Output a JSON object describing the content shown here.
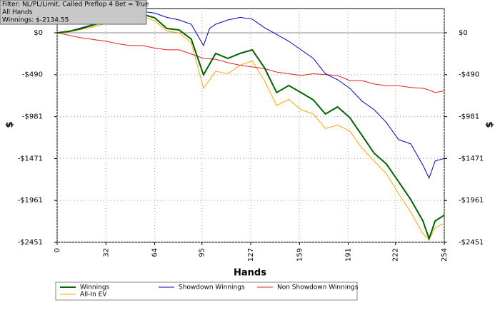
{
  "chart_data": {
    "type": "line",
    "info": [
      "Filter: NL/PL/Limit, Called Preflop 4 Bet = True",
      "All Hands",
      "Winnings: $-2134.55"
    ],
    "x_label": "Hands",
    "y_label": "$",
    "x": [
      0,
      8,
      16,
      24,
      32,
      40,
      48,
      56,
      64,
      72,
      80,
      88,
      96,
      100,
      104,
      112,
      120,
      128,
      136,
      144,
      152,
      160,
      168,
      176,
      184,
      192,
      200,
      208,
      216,
      224,
      232,
      240,
      244,
      248,
      254
    ],
    "series": [
      {
        "name": "Winnings",
        "color": "#006400",
        "values": [
          0,
          17,
          50,
          92,
          133,
          175,
          133,
          217,
          175,
          50,
          33,
          -75,
          -492,
          -367,
          -242,
          -300,
          -242,
          -200,
          -408,
          -700,
          -617,
          -700,
          -784,
          -951,
          -867,
          -992,
          -1200,
          -1409,
          -1534,
          -1742,
          -1951,
          -2201,
          -2409,
          -2201,
          -2134
        ]
      },
      {
        "name": "Showdown Winnings",
        "color": "#0000cc",
        "values": [
          0,
          20,
          60,
          100,
          160,
          200,
          170,
          250,
          230,
          180,
          150,
          100,
          -150,
          50,
          100,
          150,
          180,
          160,
          60,
          -20,
          -100,
          -200,
          -300,
          -480,
          -550,
          -650,
          -800,
          -900,
          -1050,
          -1250,
          -1300,
          -1550,
          -1700,
          -1500,
          -1471
        ]
      },
      {
        "name": "Non Showdown Winnings",
        "color": "#e82020",
        "values": [
          0,
          -30,
          -60,
          -80,
          -100,
          -130,
          -150,
          -150,
          -180,
          -200,
          -200,
          -250,
          -300,
          -305,
          -310,
          -350,
          -380,
          -400,
          -420,
          -460,
          -480,
          -500,
          -480,
          -490,
          -500,
          -560,
          -560,
          -600,
          -620,
          -620,
          -640,
          -650,
          -670,
          -700,
          -680
        ]
      },
      {
        "name": "All-In EV",
        "color": "#ffa500",
        "values": [
          0,
          10,
          40,
          70,
          110,
          150,
          100,
          190,
          140,
          20,
          0,
          -120,
          -650,
          -550,
          -450,
          -480,
          -380,
          -330,
          -560,
          -850,
          -780,
          -900,
          -950,
          -1120,
          -1080,
          -1150,
          -1350,
          -1500,
          -1650,
          -1880,
          -2100,
          -2350,
          -2420,
          -2280,
          -2230
        ]
      }
    ],
    "xlim": [
      0,
      254
    ],
    "xticks": [
      0,
      32,
      64,
      95,
      127,
      159,
      191,
      222,
      254
    ],
    "ylim": [
      -2451,
      283
    ],
    "yticks": [
      {
        "value": 0,
        "label": "$0"
      },
      {
        "value": -490,
        "label": "-$490"
      },
      {
        "value": -981,
        "label": "-$981"
      },
      {
        "value": -1471,
        "label": "-$1471"
      },
      {
        "value": -1961,
        "label": "-$1961"
      },
      {
        "value": -2451,
        "label": "-$2451"
      }
    ],
    "grid": true
  }
}
